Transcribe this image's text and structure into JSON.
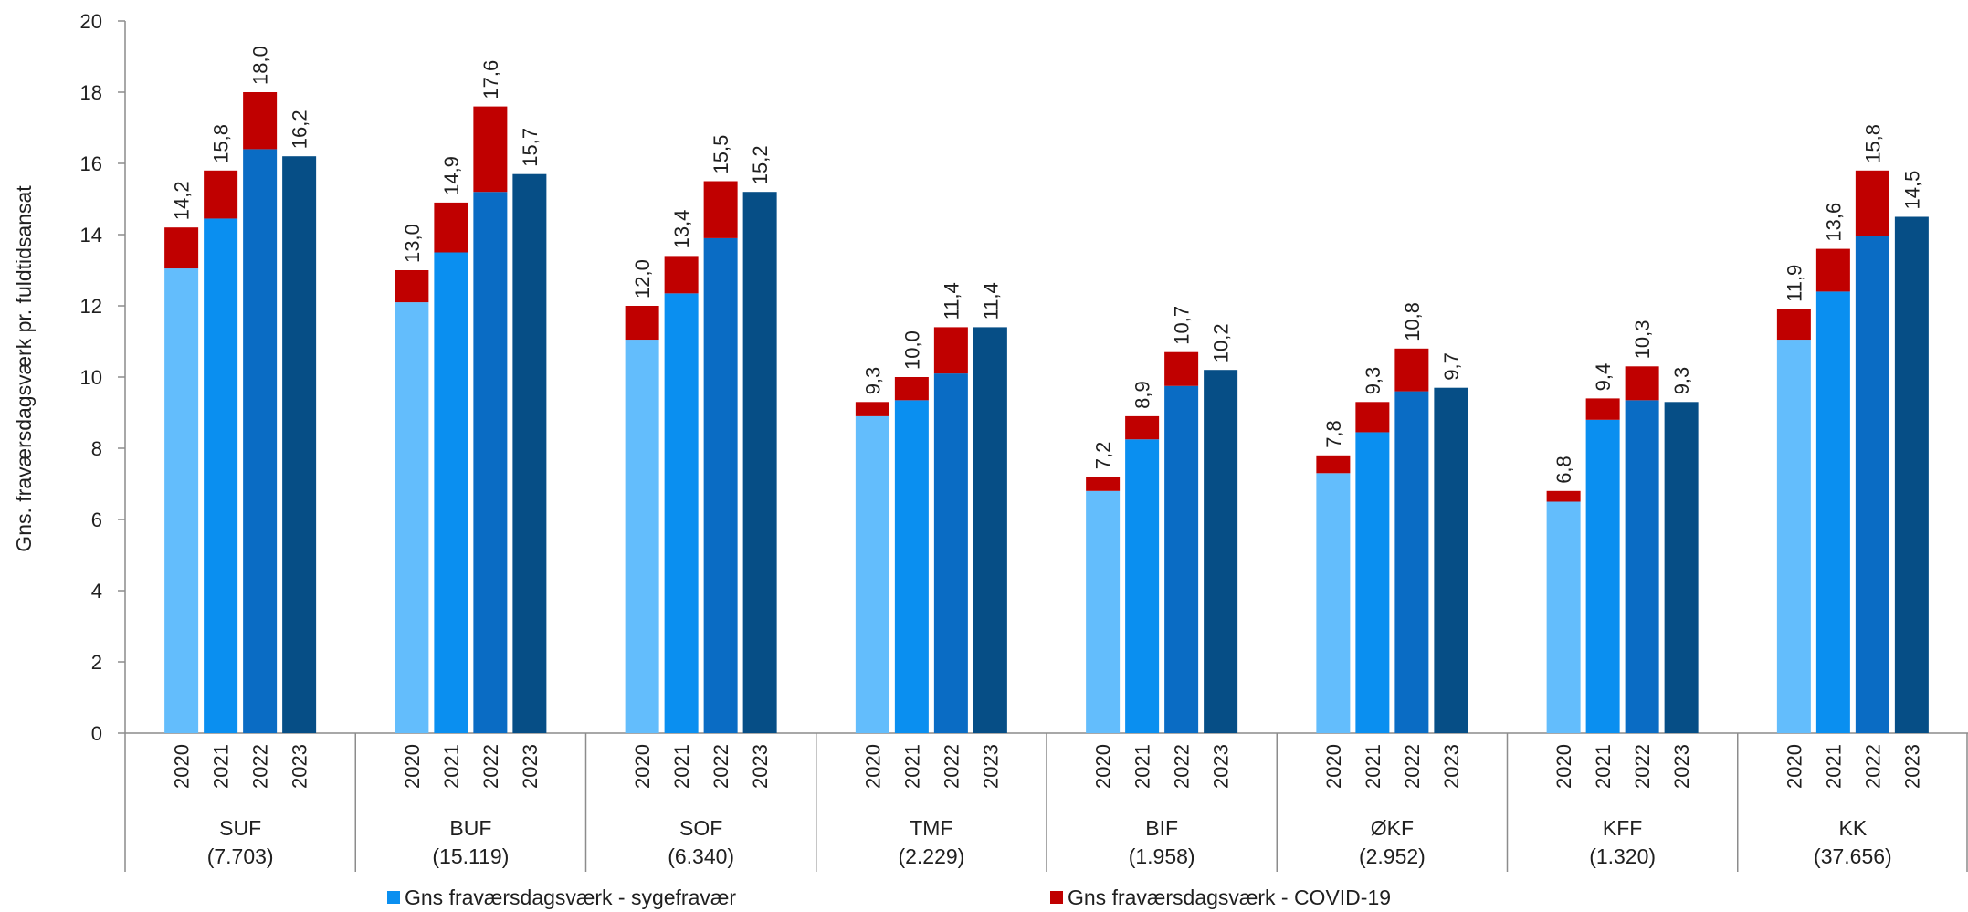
{
  "chart_data": {
    "type": "bar",
    "stacked": true,
    "title": "",
    "ylabel": "Gns. fraværsdagsværk pr. fuldtidsansat",
    "xlabel": "",
    "ylim": [
      0,
      20
    ],
    "yticks": [
      0,
      2,
      4,
      6,
      8,
      10,
      12,
      14,
      16,
      18,
      20
    ],
    "grid": false,
    "legend_position": "bottom",
    "years": [
      "2020",
      "2021",
      "2022",
      "2023"
    ],
    "year_colors": [
      "#63bdfc",
      "#0a8ff0",
      "#0a6cc4",
      "#064e86"
    ],
    "groups": [
      {
        "name": "SUF",
        "count": "(7.703)",
        "sick": [
          13.05,
          14.45,
          16.4,
          16.2
        ],
        "covid": [
          1.15,
          1.35,
          1.6,
          0
        ],
        "totals": [
          "14,2",
          "15,8",
          "18,0",
          "16,2"
        ]
      },
      {
        "name": "BUF",
        "count": "(15.119)",
        "sick": [
          12.1,
          13.5,
          15.2,
          15.7
        ],
        "covid": [
          0.9,
          1.4,
          2.4,
          0
        ],
        "totals": [
          "13,0",
          "14,9",
          "17,6",
          "15,7"
        ]
      },
      {
        "name": "SOF",
        "count": "(6.340)",
        "sick": [
          11.05,
          12.35,
          13.9,
          15.2
        ],
        "covid": [
          0.95,
          1.05,
          1.6,
          0
        ],
        "totals": [
          "12,0",
          "13,4",
          "15,5",
          "15,2"
        ]
      },
      {
        "name": "TMF",
        "count": "(2.229)",
        "sick": [
          8.9,
          9.35,
          10.1,
          11.4
        ],
        "covid": [
          0.4,
          0.65,
          1.3,
          0
        ],
        "totals": [
          "9,3",
          "10,0",
          "11,4",
          "11,4"
        ]
      },
      {
        "name": "BIF",
        "count": "(1.958)",
        "sick": [
          6.8,
          8.25,
          9.75,
          10.2
        ],
        "covid": [
          0.4,
          0.65,
          0.95,
          0
        ],
        "totals": [
          "7,2",
          "8,9",
          "10,7",
          "10,2"
        ]
      },
      {
        "name": "ØKF",
        "count": "(2.952)",
        "sick": [
          7.3,
          8.45,
          9.6,
          9.7
        ],
        "covid": [
          0.5,
          0.85,
          1.2,
          0
        ],
        "totals": [
          "7,8",
          "9,3",
          "10,8",
          "9,7"
        ]
      },
      {
        "name": "KFF",
        "count": "(1.320)",
        "sick": [
          6.5,
          8.8,
          9.35,
          9.3
        ],
        "covid": [
          0.3,
          0.6,
          0.95,
          0
        ],
        "totals": [
          "6,8",
          "9,4",
          "10,3",
          "9,3"
        ]
      },
      {
        "name": "KK",
        "count": "(37.656)",
        "sick": [
          11.05,
          12.4,
          13.95,
          14.5
        ],
        "covid": [
          0.85,
          1.2,
          1.85,
          0
        ],
        "totals": [
          "11,9",
          "13,6",
          "15,8",
          "14,5"
        ]
      }
    ],
    "series": [
      {
        "name": "Gns fraværsdagsværk - sygefravær",
        "color": "#0a8ff0"
      },
      {
        "name": "Gns fraværsdagsværk - COVID-19",
        "color": "#c00000"
      }
    ],
    "covid_color": "#c00000"
  }
}
